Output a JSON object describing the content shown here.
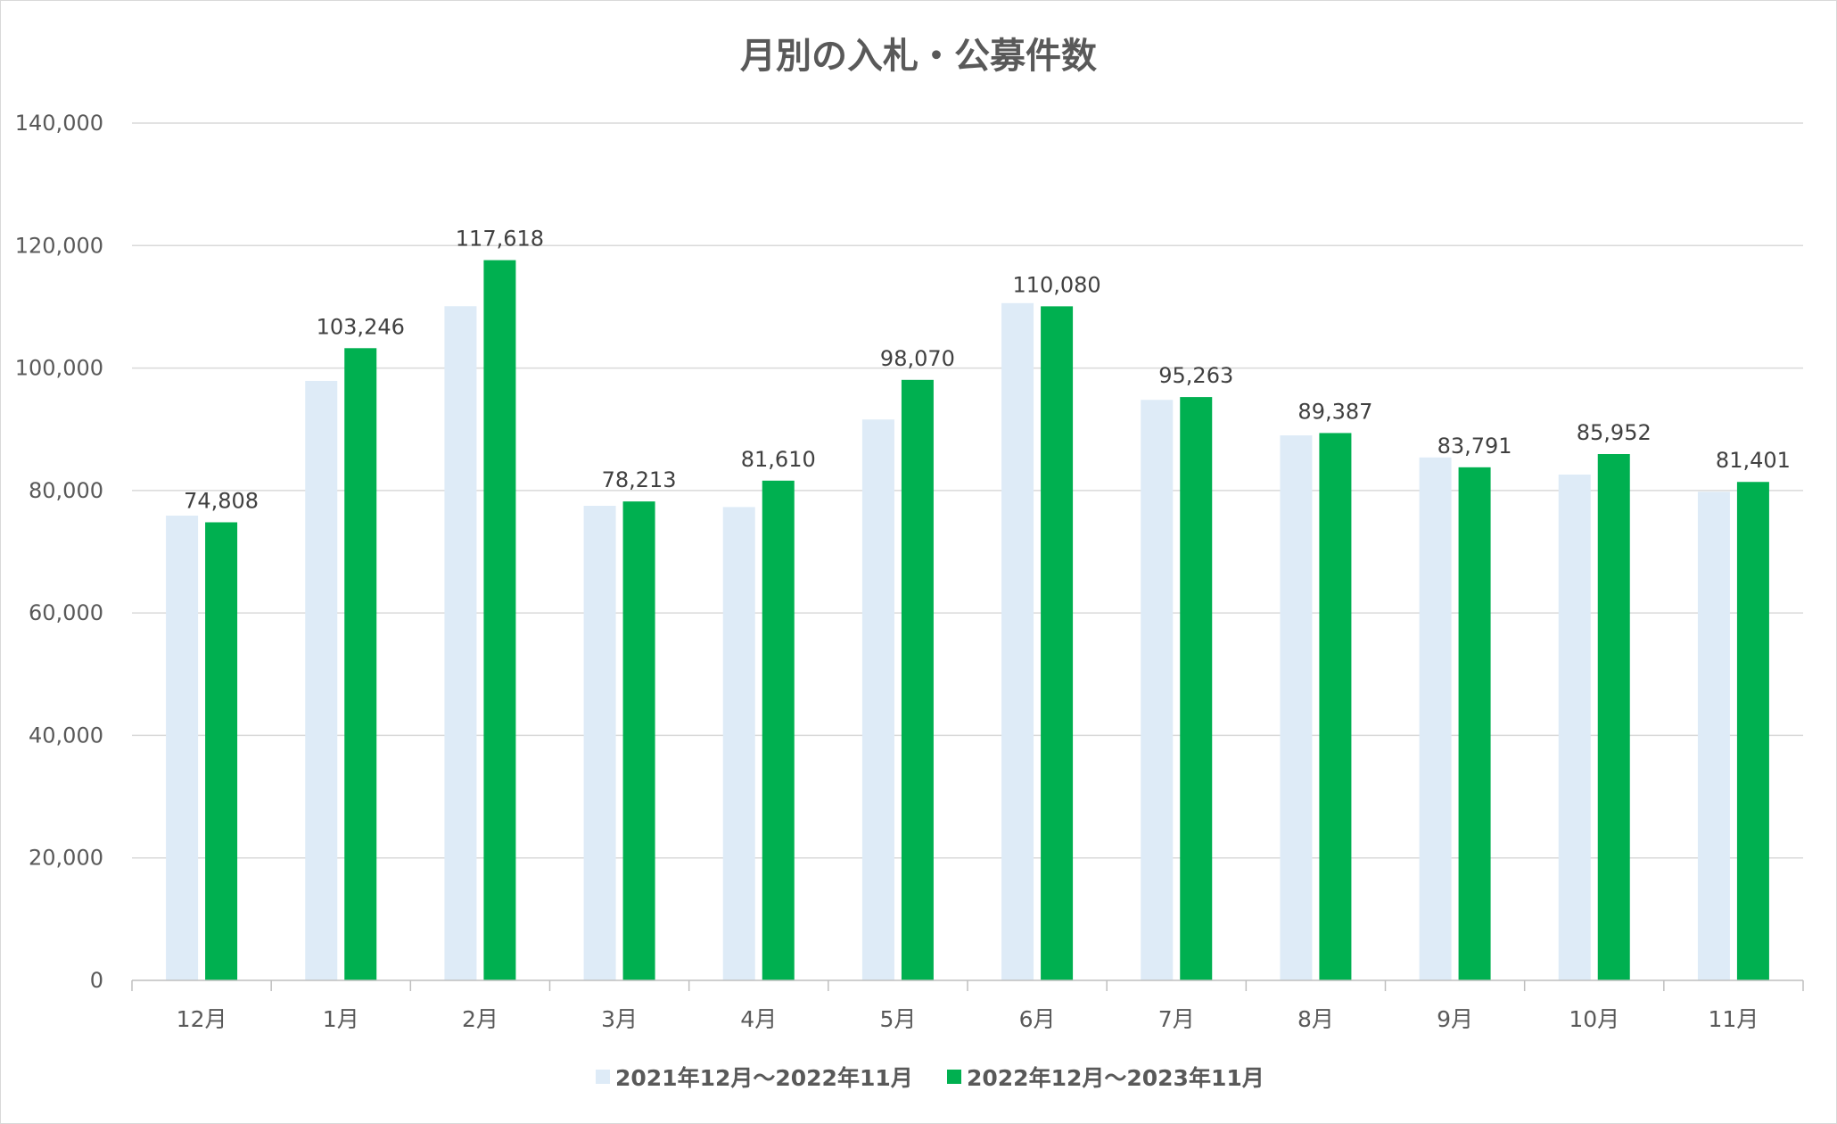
{
  "chart_data": {
    "type": "bar",
    "title": "月別の入札・公募件数",
    "categories": [
      "12月",
      "1月",
      "2月",
      "3月",
      "4月",
      "5月",
      "6月",
      "7月",
      "8月",
      "9月",
      "10月",
      "11月"
    ],
    "series": [
      {
        "name": "2021年12月～2022年11月",
        "color": "#deebf7",
        "values": [
          75900,
          97900,
          110100,
          77500,
          77300,
          91600,
          110600,
          94800,
          89000,
          85400,
          82600,
          79800
        ],
        "labels": []
      },
      {
        "name": "2022年12月～2023年11月",
        "color": "#00b050",
        "values": [
          74808,
          103246,
          117618,
          78213,
          81610,
          98070,
          110080,
          95263,
          89387,
          83791,
          85952,
          81401
        ],
        "labels": [
          "74,808",
          "103,246",
          "117,618",
          "78,213",
          "81,610",
          "98,070",
          "110,080",
          "95,263",
          "89,387",
          "83,791",
          "85,952",
          "81,401"
        ]
      }
    ],
    "ylim": [
      0,
      140000
    ],
    "yticks": [
      0,
      20000,
      40000,
      60000,
      80000,
      100000,
      120000,
      140000
    ],
    "ytick_labels": [
      "0",
      "20,000",
      "40,000",
      "60,000",
      "80,000",
      "100,000",
      "120,000",
      "140,000"
    ],
    "xlabel": "",
    "ylabel": "",
    "grid": true,
    "legend_position": "bottom"
  }
}
